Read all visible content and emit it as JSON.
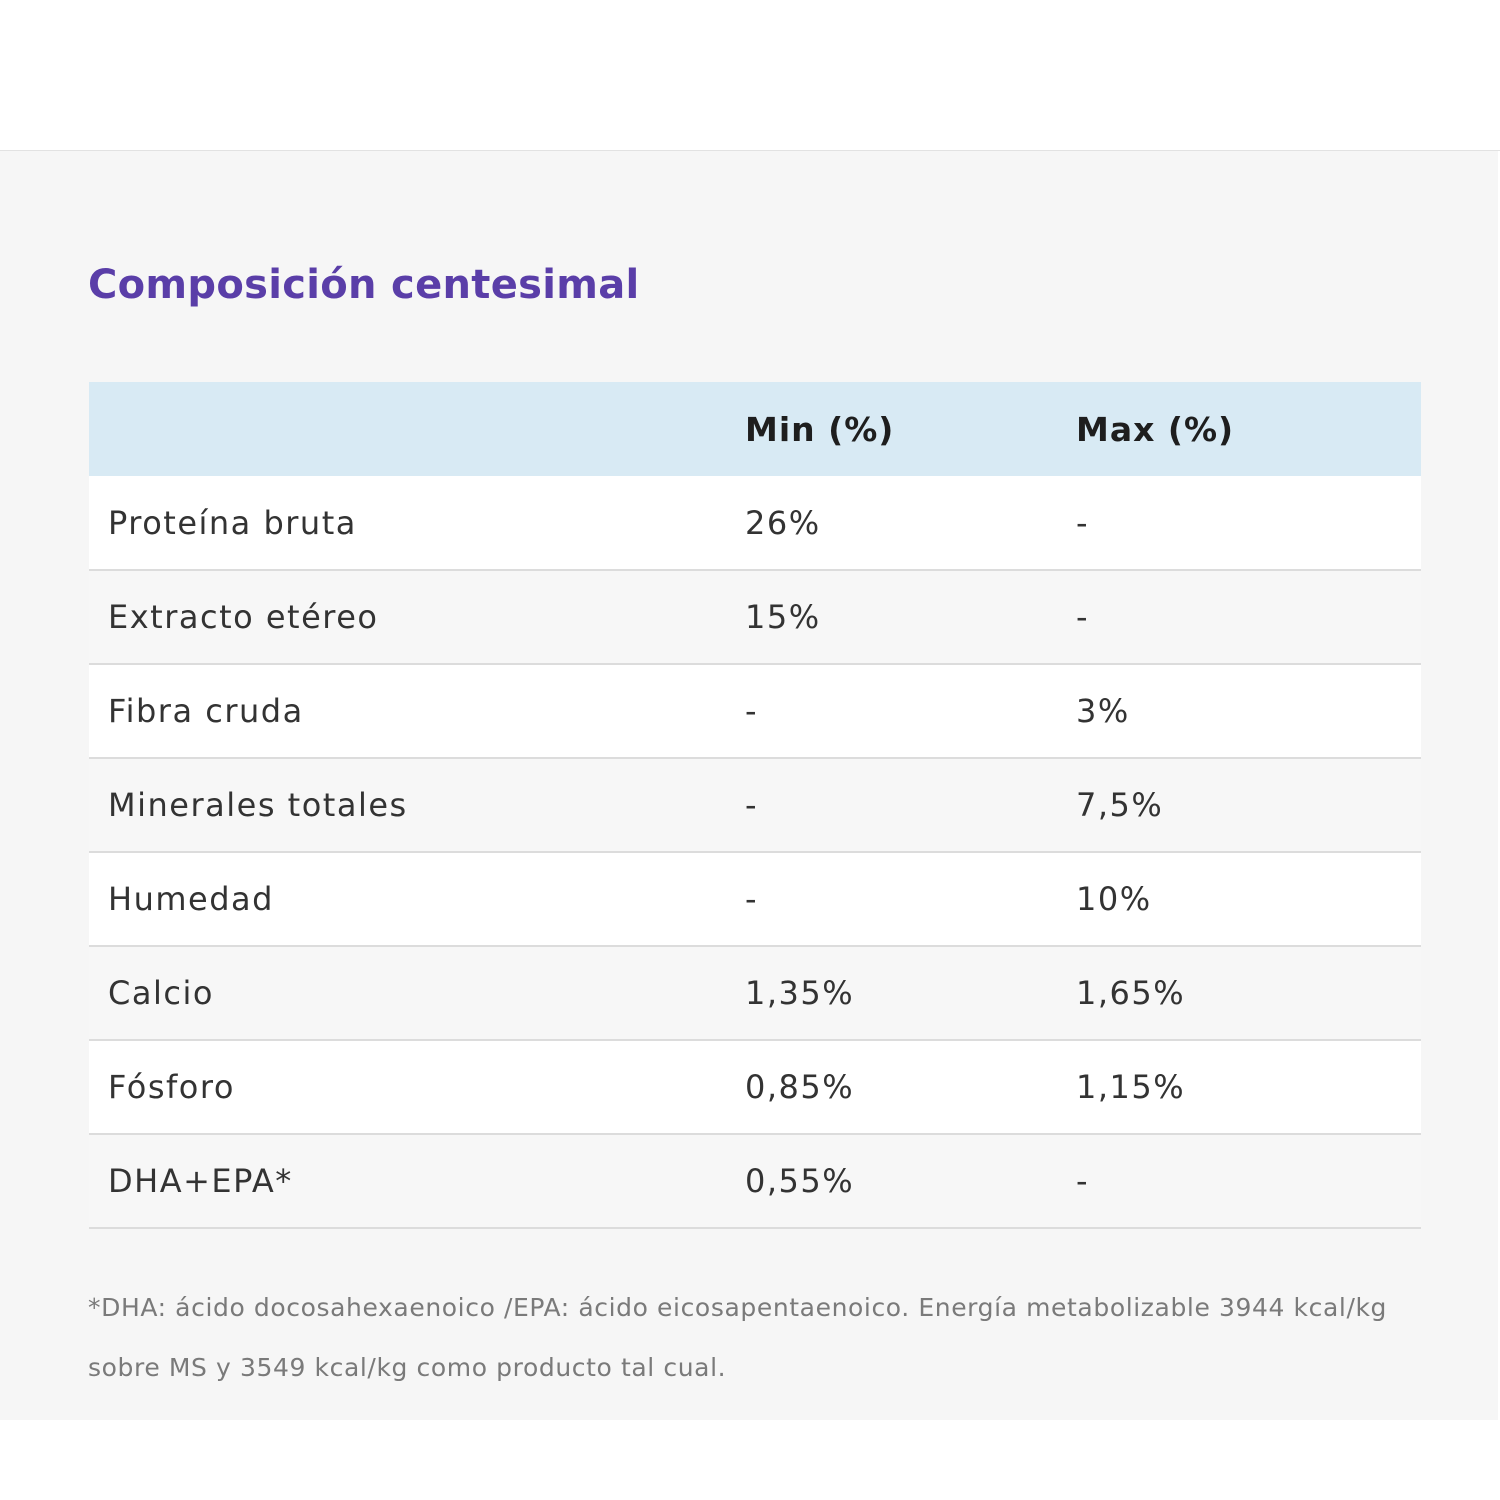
{
  "title": "Composición centesimal",
  "table": {
    "headers": [
      "",
      "Min (%)",
      "Max (%)"
    ],
    "rows": [
      {
        "name": "Proteína bruta",
        "min": "26%",
        "max": "-"
      },
      {
        "name": "Extracto etéreo",
        "min": "15%",
        "max": "-"
      },
      {
        "name": "Fibra cruda",
        "min": "-",
        "max": "3%"
      },
      {
        "name": "Minerales totales",
        "min": "-",
        "max": "7,5%"
      },
      {
        "name": "Humedad",
        "min": "-",
        "max": "10%"
      },
      {
        "name": "Calcio",
        "min": "1,35%",
        "max": "1,65%"
      },
      {
        "name": "Fósforo",
        "min": "0,85%",
        "max": "1,15%"
      },
      {
        "name": "DHA+EPA*",
        "min": "0,55%",
        "max": "-"
      }
    ]
  },
  "footnote": "*DHA: ácido docosahexaenoico /EPA: ácido eicosapentaenoico. Energía metabolizable 3944 kcal/kg sobre MS y 3549 kcal/kg como producto tal cual.",
  "colors": {
    "title": "#5a3ea8",
    "header_bg": "#d8eaf4",
    "panel_bg": "#f6f6f6"
  }
}
